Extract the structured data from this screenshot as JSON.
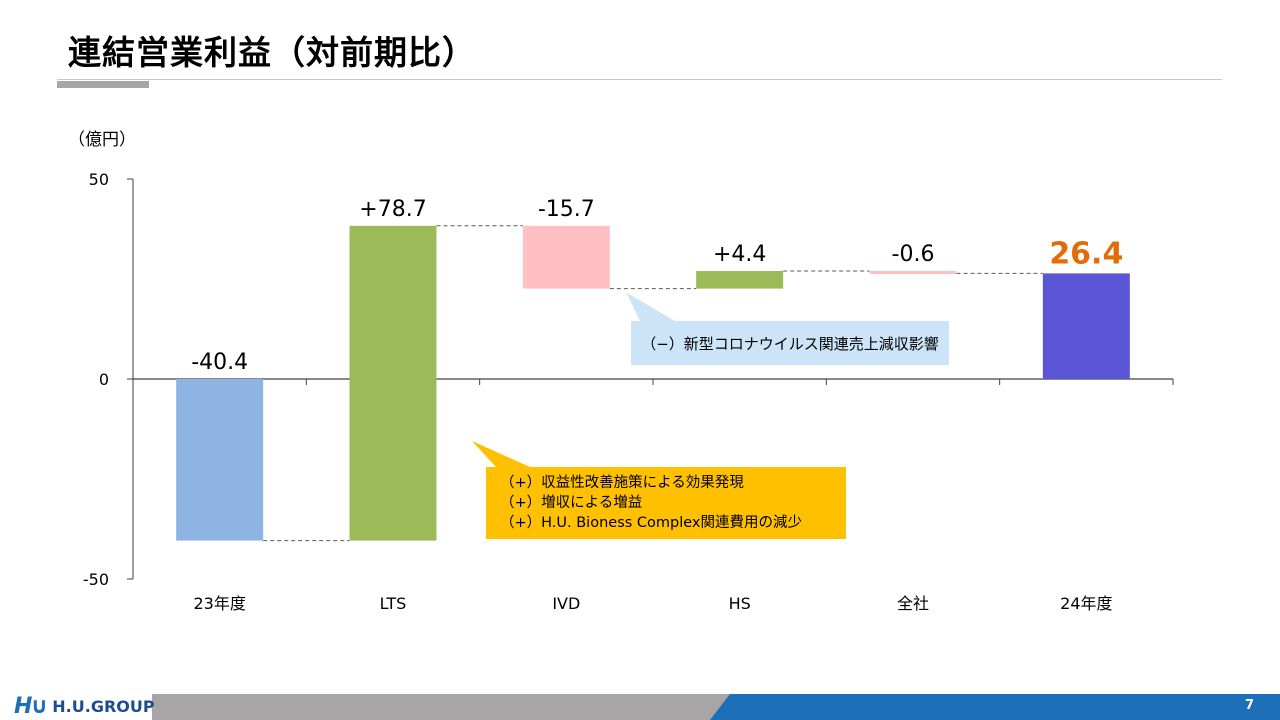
{
  "title": "連結営業利益（対前期比）",
  "unit_label": "（億円）",
  "chart_data": {
    "type": "waterfall",
    "ylim": [
      -50,
      50
    ],
    "yticks": [
      "50",
      "0",
      "-50"
    ],
    "yticks_values": [
      50,
      0,
      -50
    ],
    "categories": [
      "23年度",
      "LTS",
      "IVD",
      "HS",
      "全社",
      "24年度"
    ],
    "bars": [
      {
        "category": "23年度",
        "start": 0,
        "end": -40.4,
        "label": "-40.4",
        "color": "#8db4e2",
        "label_style": "normal"
      },
      {
        "category": "LTS",
        "start": -40.4,
        "end": 38.3,
        "label": "+78.7",
        "color": "#9bbb59",
        "label_style": "normal"
      },
      {
        "category": "IVD",
        "start": 38.3,
        "end": 22.6,
        "label": "-15.7",
        "color": "#ffc0c4",
        "label_style": "normal"
      },
      {
        "category": "HS",
        "start": 22.6,
        "end": 27.0,
        "label": "+4.4",
        "color": "#9bbb59",
        "label_style": "normal"
      },
      {
        "category": "全社",
        "start": 27.0,
        "end": 26.4,
        "label": "-0.6",
        "color": "#ffc0c4",
        "label_style": "normal"
      },
      {
        "category": "24年度",
        "start": 0,
        "end": 26.4,
        "label": "26.4",
        "color": "#5a55d4",
        "label_style": "highlight"
      }
    ],
    "highlight_label_color": "#e36c09"
  },
  "callouts": {
    "ivd": {
      "lines": [
        "（−）新型コロナウイルス関連売上減収影響"
      ]
    },
    "lts": {
      "lines": [
        "（+）収益性改善施策による効果発現",
        "（+）増収による増益",
        "（+）H.U. Bioness Complex関連費用の減少"
      ]
    }
  },
  "footer": {
    "logo_mark": "H∪",
    "logo_text": "H.U.GROUP",
    "page_number": "7"
  },
  "colors": {
    "brand_blue": "#1d6fb8",
    "footer_gray": "#a7a5a6",
    "callout_blue": "#cce4f7",
    "callout_gold": "#ffc000"
  }
}
